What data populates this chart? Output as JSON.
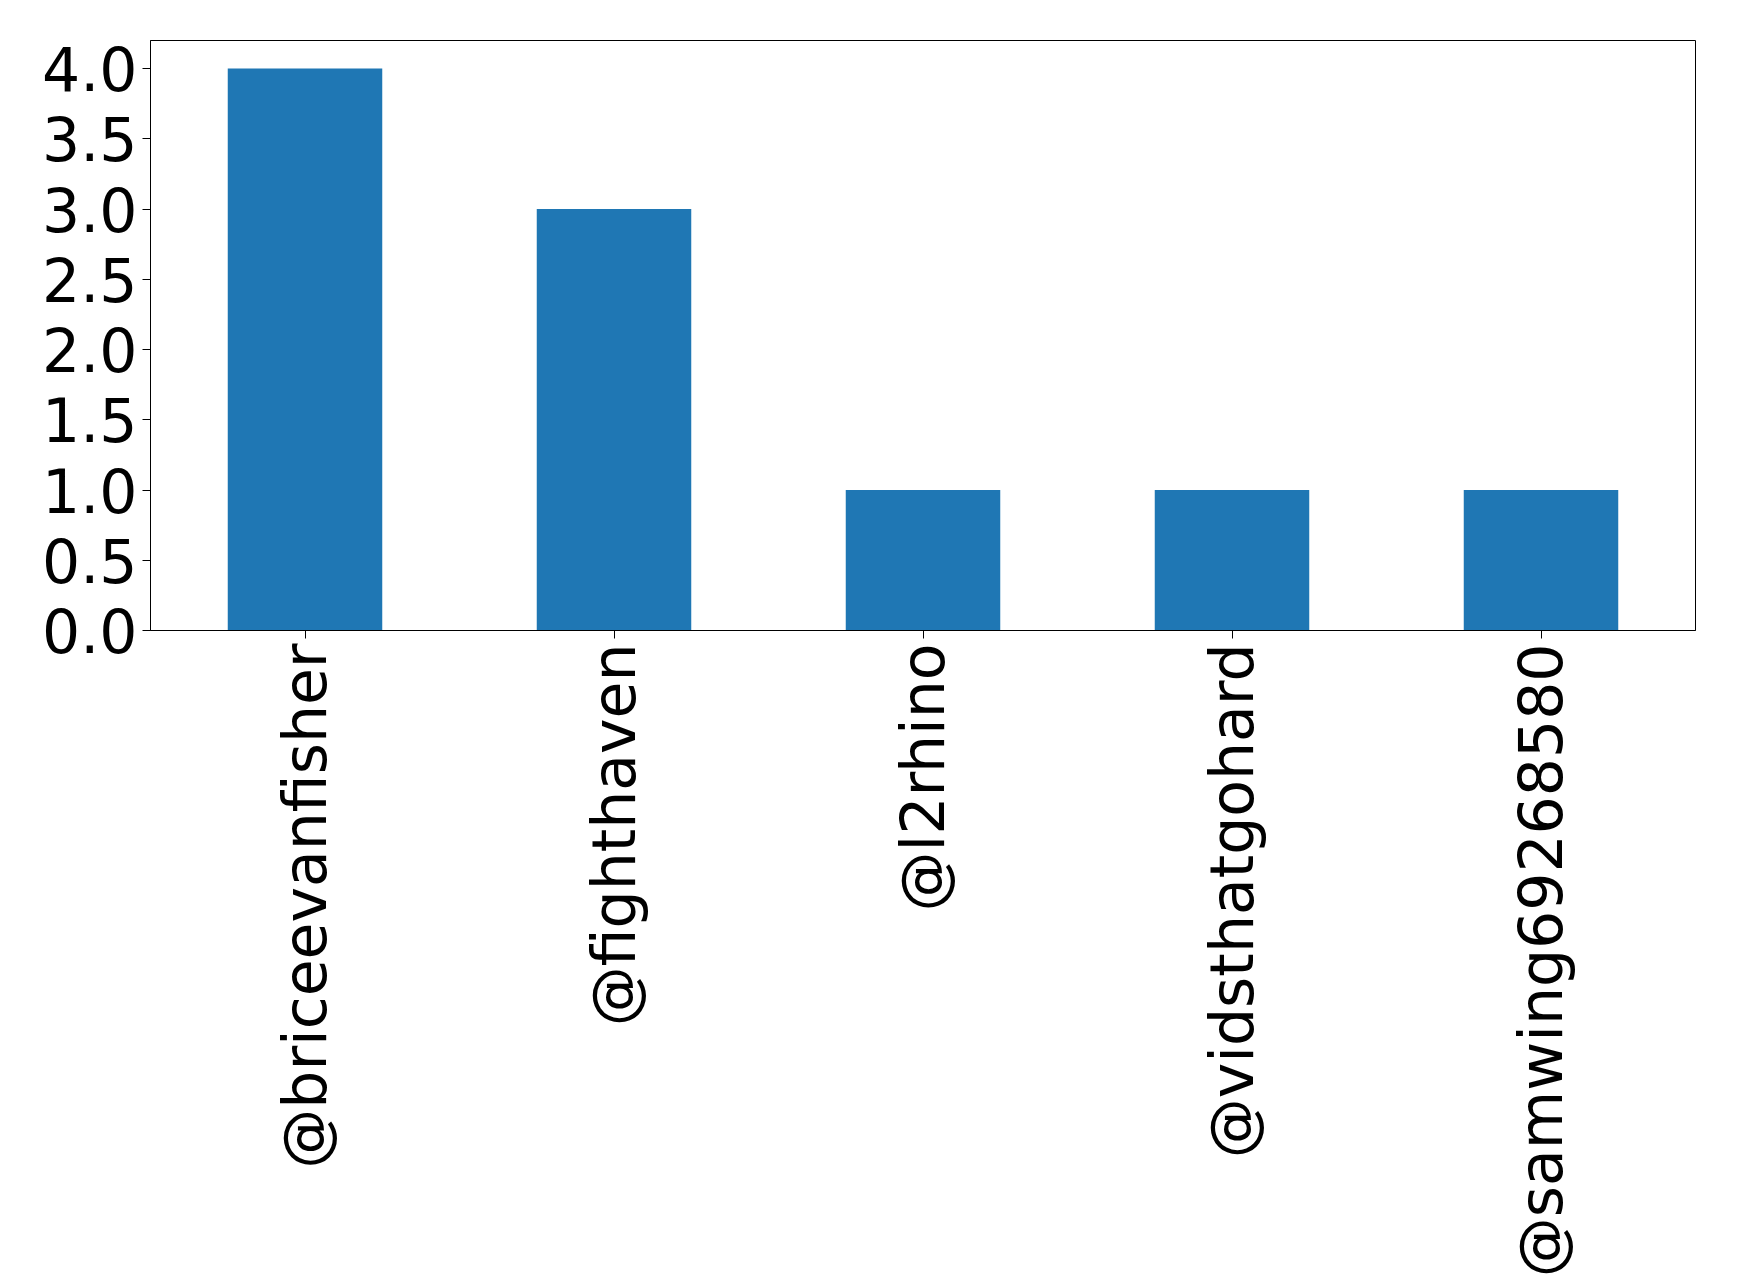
{
  "chart_data": {
    "type": "bar",
    "categories": [
      "@briceevanfisher",
      "@fighthaven",
      "@l2rhino",
      "@vidsthatgohard",
      "@samwing69268580"
    ],
    "values": [
      4,
      3,
      1,
      1,
      1
    ],
    "color": "#1f77b4",
    "ylim": [
      0,
      4.2
    ],
    "yticks": [
      {
        "value": 0,
        "label": "0.0"
      },
      {
        "value": 0.5,
        "label": "0.5"
      },
      {
        "value": 1,
        "label": "1.0"
      },
      {
        "value": 1.5,
        "label": "1.5"
      },
      {
        "value": 2,
        "label": "2.0"
      },
      {
        "value": 2.5,
        "label": "2.5"
      },
      {
        "value": 3,
        "label": "3.0"
      },
      {
        "value": 3.5,
        "label": "3.5"
      },
      {
        "value": 4,
        "label": "4.0"
      }
    ],
    "grid": false
  }
}
